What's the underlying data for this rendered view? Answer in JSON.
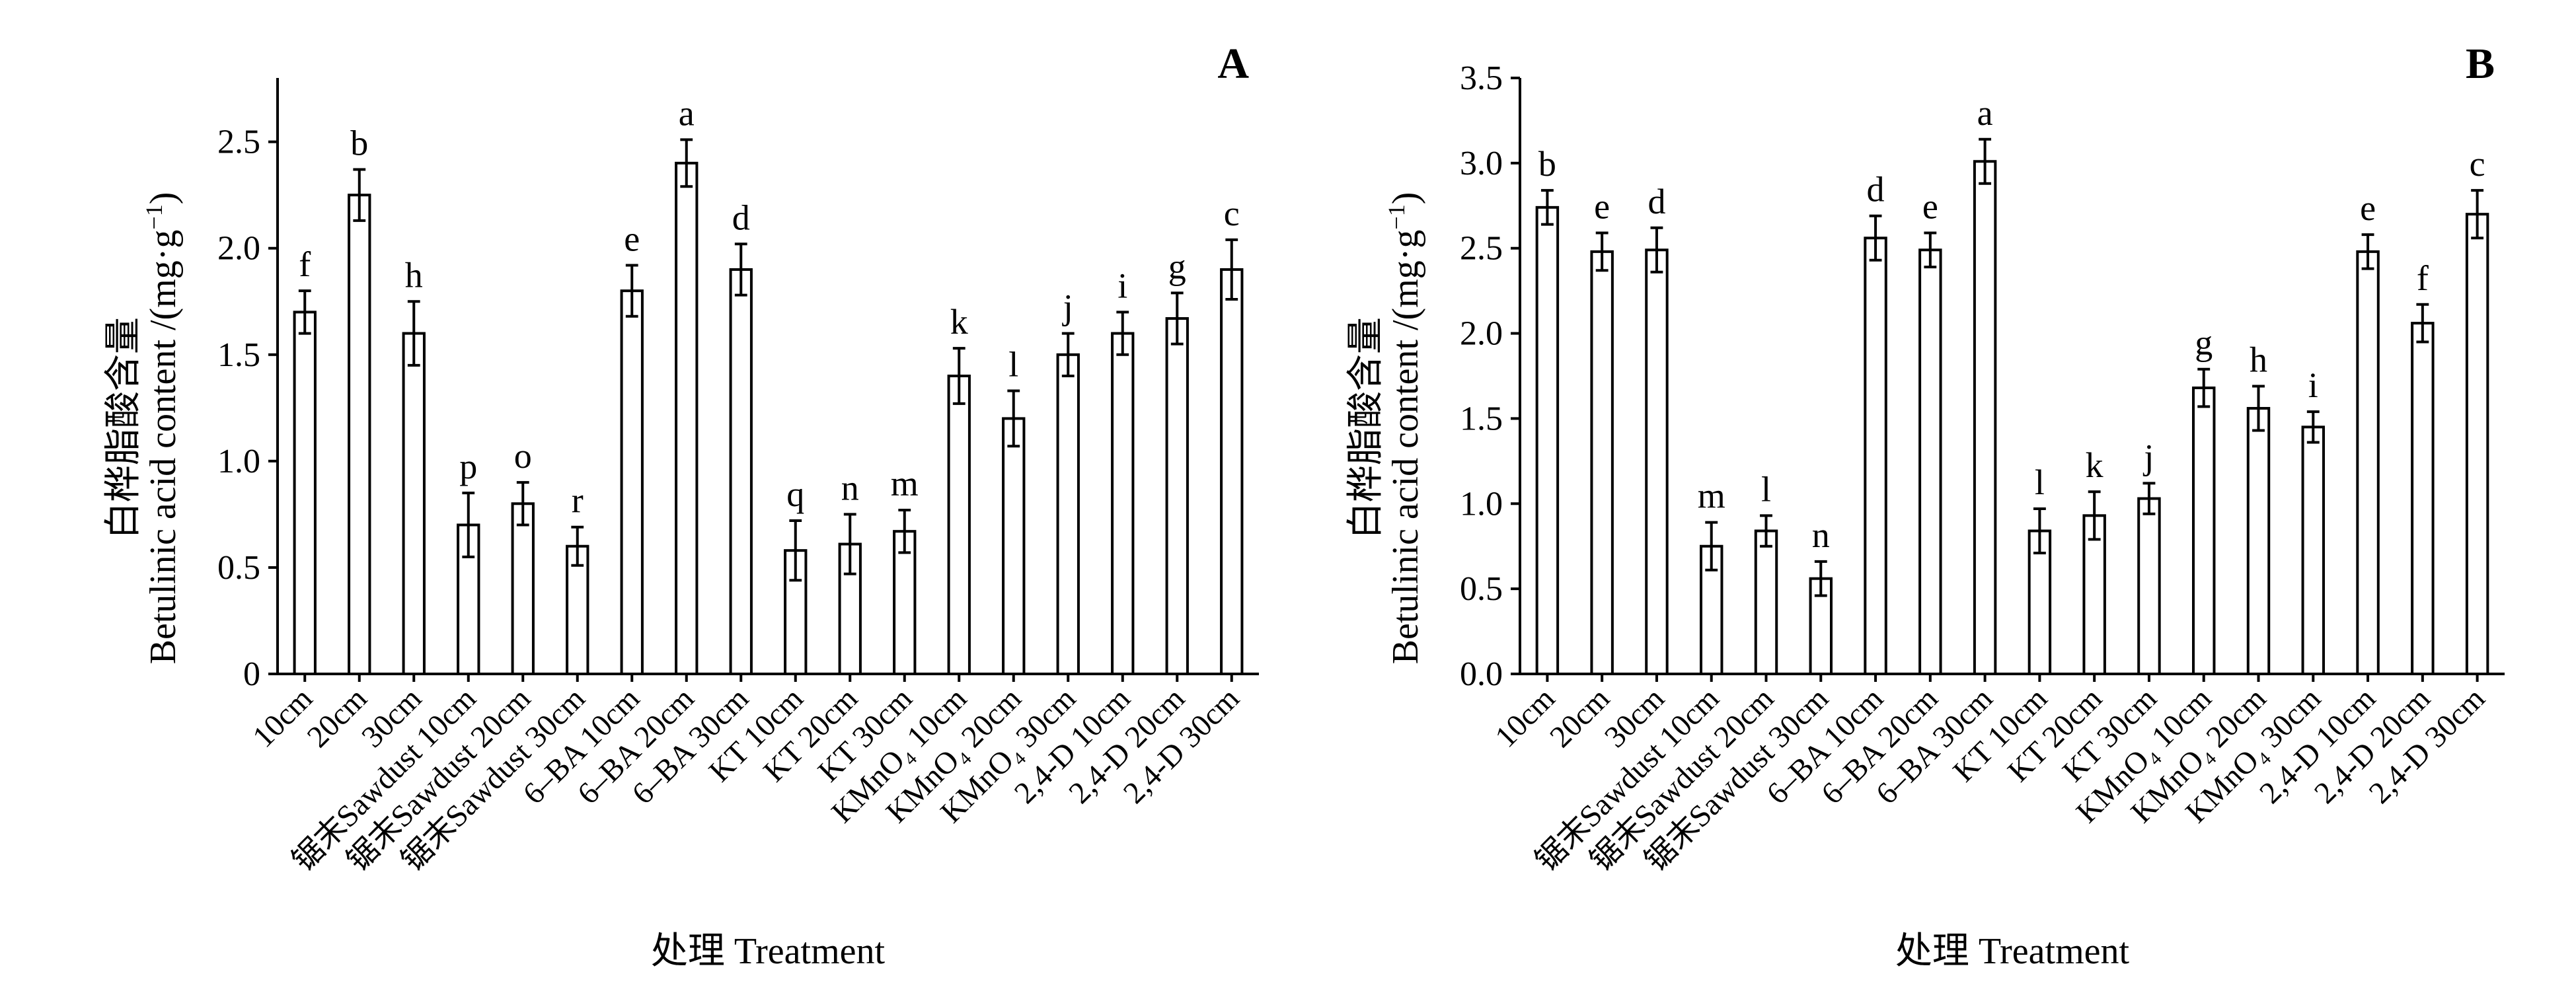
{
  "figure": {
    "x_axis_title": "处理 Treatment",
    "y_axis_title_cn": "白桦脂酸含量",
    "y_axis_title_en": "Betulinic acid content /(mg·g",
    "y_axis_title_sup": "−1",
    "y_axis_title_close": ")"
  },
  "chart_data": [
    {
      "type": "bar",
      "panel_label": "A",
      "categories": [
        "10cm",
        "20cm",
        "30cm",
        "锯末Sawdust 10cm",
        "锯末Sawdust 20cm",
        "锯末Sawdust 30cm",
        "6–BA 10cm",
        "6–BA 20cm",
        "6–BA 30cm",
        "KT 10cm",
        "KT 20cm",
        "KT 30cm",
        "KMnO₄ 10cm",
        "KMnO₄ 20cm",
        "KMnO₄ 30cm",
        "2,4-D 10cm",
        "2,4-D 20cm",
        "2,4-D 30cm"
      ],
      "values": [
        1.7,
        2.25,
        1.6,
        0.7,
        0.8,
        0.6,
        1.8,
        2.4,
        1.9,
        0.58,
        0.61,
        0.67,
        1.4,
        1.2,
        1.5,
        1.6,
        1.67,
        1.9
      ],
      "errors": [
        0.1,
        0.12,
        0.15,
        0.15,
        0.1,
        0.09,
        0.12,
        0.11,
        0.12,
        0.14,
        0.14,
        0.1,
        0.13,
        0.13,
        0.1,
        0.1,
        0.12,
        0.14
      ],
      "significance": [
        "f",
        "b",
        "h",
        "p",
        "o",
        "r",
        "e",
        "a",
        "d",
        "q",
        "n",
        "m",
        "k",
        "l",
        "j",
        "i",
        "g",
        "c"
      ],
      "ylim": [
        0,
        2.8
      ],
      "yticks": [
        "0",
        "0.5",
        "1.0",
        "1.5",
        "2.0",
        "2.5"
      ],
      "ytick_values": [
        0,
        0.5,
        1.0,
        1.5,
        2.0,
        2.5
      ],
      "grid": false
    },
    {
      "type": "bar",
      "panel_label": "B",
      "categories": [
        "10cm",
        "20cm",
        "30cm",
        "锯末Sawdust 10cm",
        "锯末Sawdust 20cm",
        "锯末Sawdust 30cm",
        "6–BA 10cm",
        "6–BA 20cm",
        "6–BA 30cm",
        "KT 10cm",
        "KT 20cm",
        "KT 30cm",
        "KMnO₄ 10cm",
        "KMnO₄ 20cm",
        "KMnO₄ 30cm",
        "2,4-D 10cm",
        "2,4-D 20cm",
        "2,4-D 30cm"
      ],
      "values": [
        2.74,
        2.48,
        2.49,
        0.75,
        0.84,
        0.56,
        2.56,
        2.49,
        3.01,
        0.84,
        0.93,
        1.03,
        1.68,
        1.56,
        1.45,
        2.48,
        2.06,
        2.7
      ],
      "errors": [
        0.1,
        0.11,
        0.13,
        0.14,
        0.09,
        0.1,
        0.13,
        0.1,
        0.13,
        0.13,
        0.14,
        0.09,
        0.11,
        0.13,
        0.09,
        0.1,
        0.11,
        0.14
      ],
      "significance": [
        "b",
        "e",
        "d",
        "m",
        "l",
        "n",
        "d",
        "e",
        "a",
        "l",
        "k",
        "j",
        "g",
        "h",
        "i",
        "e",
        "f",
        "c"
      ],
      "ylim": [
        0,
        3.5
      ],
      "yticks": [
        "0.0",
        "0.5",
        "1.0",
        "1.5",
        "2.0",
        "2.5",
        "3.0",
        "3.5"
      ],
      "ytick_values": [
        0,
        0.5,
        1.0,
        1.5,
        2.0,
        2.5,
        3.0,
        3.5
      ],
      "grid": false
    }
  ]
}
